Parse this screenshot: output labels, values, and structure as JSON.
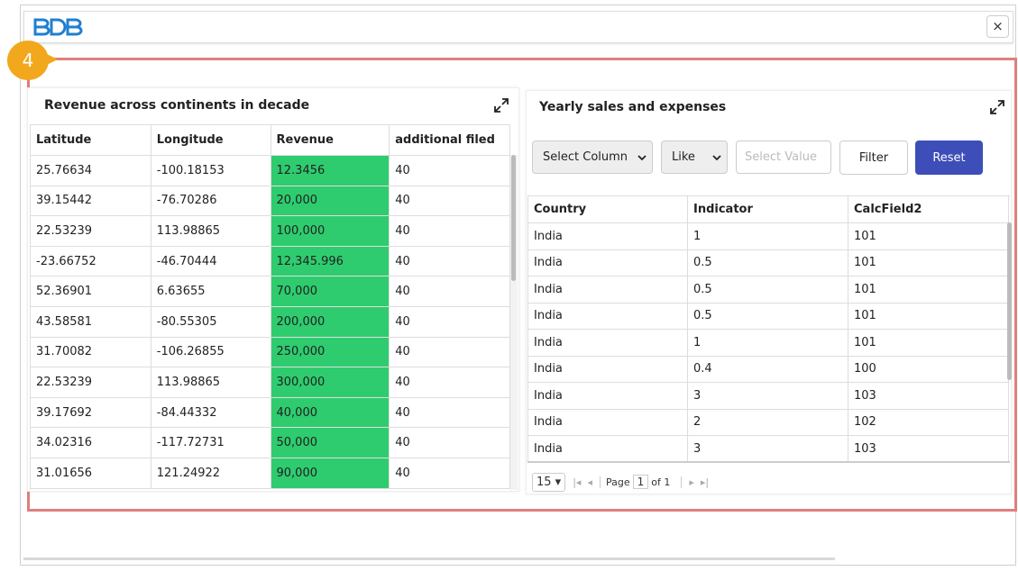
{
  "header": {
    "close": "×"
  },
  "badge": "4",
  "left_panel": {
    "title": "Revenue across continents in decade",
    "columns": [
      "Latitude",
      "Longitude",
      "Revenue",
      "additional filed"
    ],
    "rows": [
      [
        "25.76634",
        "-100.18153",
        "12.3456",
        "40"
      ],
      [
        "39.15442",
        "-76.70286",
        "20,000",
        "40"
      ],
      [
        "22.53239",
        "113.98865",
        "100,000",
        "40"
      ],
      [
        "-23.66752",
        "-46.70444",
        "12,345.996",
        "40"
      ],
      [
        "52.36901",
        "6.63655",
        "70,000",
        "40"
      ],
      [
        "43.58581",
        "-80.55305",
        "200,000",
        "40"
      ],
      [
        "31.70082",
        "-106.26855",
        "250,000",
        "40"
      ],
      [
        "22.53239",
        "113.98865",
        "300,000",
        "40"
      ],
      [
        "39.17692",
        "-84.44332",
        "40,000",
        "40"
      ],
      [
        "34.02316",
        "-117.72731",
        "50,000",
        "40"
      ],
      [
        "31.01656",
        "121.24922",
        "90,000",
        "40"
      ]
    ]
  },
  "right_panel": {
    "title": "Yearly sales and expenses",
    "filter": {
      "column": "Select Column",
      "operator": "Like",
      "value_placeholder": "Select Value",
      "filter_button": "Filter",
      "reset_button": "Reset"
    },
    "columns": [
      "Country",
      "Indicator",
      "CalcField2"
    ],
    "rows": [
      [
        "India",
        "1",
        "101"
      ],
      [
        "India",
        "0.5",
        "101"
      ],
      [
        "India",
        "0.5",
        "101"
      ],
      [
        "India",
        "0.5",
        "101"
      ],
      [
        "India",
        "1",
        "101"
      ],
      [
        "India",
        "0.4",
        "100"
      ],
      [
        "India",
        "3",
        "103"
      ],
      [
        "India",
        "2",
        "102"
      ],
      [
        "India",
        "3",
        "103"
      ]
    ],
    "pagination": {
      "page_size": "15",
      "page_label": "Page",
      "page": "1",
      "of": "of 1"
    }
  }
}
